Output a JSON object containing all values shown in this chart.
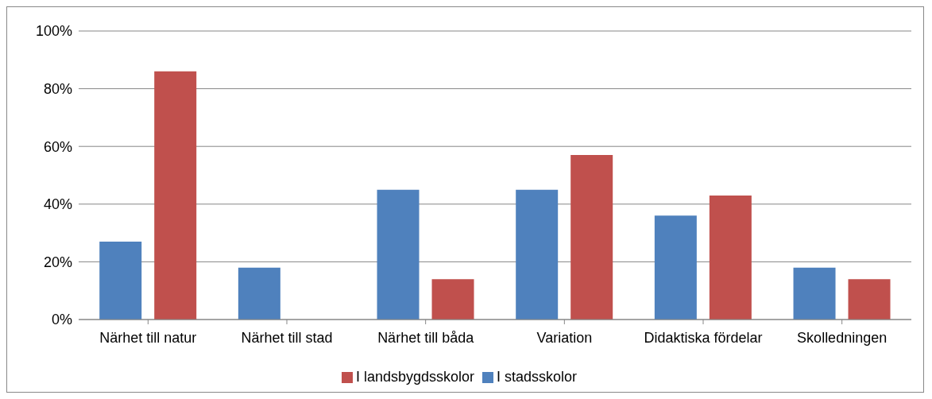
{
  "chart_data": {
    "type": "bar",
    "categories": [
      "Närhet till natur",
      "Närhet till stad",
      "Närhet till båda",
      "Variation",
      "Didaktiska fördelar",
      "Skolledningen"
    ],
    "series": [
      {
        "name": "I stadsskolor",
        "color": "#4f81bd",
        "values": [
          27,
          18,
          45,
          45,
          36,
          18
        ]
      },
      {
        "name": "I landsbygdsskolor",
        "color": "#c0504d",
        "values": [
          86,
          0,
          14,
          57,
          43,
          14
        ]
      }
    ],
    "ylim": [
      0,
      100
    ],
    "yticks": [
      {
        "value": 0,
        "label": "0%"
      },
      {
        "value": 20,
        "label": "20%"
      },
      {
        "value": 40,
        "label": "40%"
      },
      {
        "value": 60,
        "label": "60%"
      },
      {
        "value": 80,
        "label": "80%"
      },
      {
        "value": 100,
        "label": "100%"
      }
    ],
    "grid": "y",
    "legend": "bottom"
  }
}
